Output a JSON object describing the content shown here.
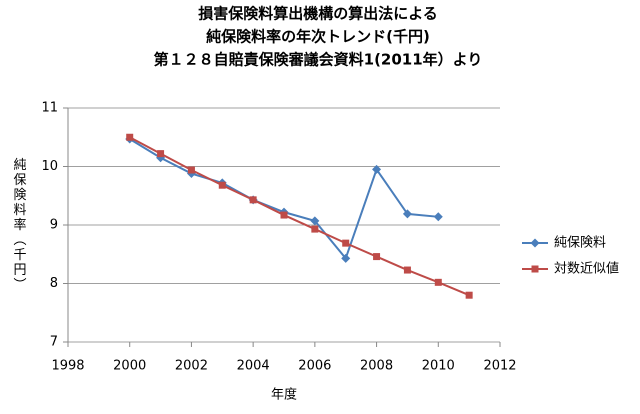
{
  "chart_data": {
    "type": "line",
    "title": [
      "損害保険料算出機構の算出法による",
      "純保険料率の年次トレンド(千円)",
      "第１２８自賠責保険審議会資料1(2011年）より"
    ],
    "x_label": "年度",
    "y_label": "純保険料率（千円）",
    "x": [
      2000,
      2001,
      2002,
      2003,
      2004,
      2005,
      2006,
      2007,
      2008,
      2009,
      2010,
      2011
    ],
    "series": [
      {
        "name": "純保険料",
        "color": "#4a7ebb",
        "marker": "diamond",
        "values": [
          10.47,
          10.15,
          9.88,
          9.72,
          9.43,
          9.22,
          9.07,
          8.43,
          9.95,
          9.19,
          9.14,
          null
        ]
      },
      {
        "name": "対数近似値",
        "color": "#be4b48",
        "marker": "square",
        "values": [
          10.5,
          10.22,
          9.94,
          9.68,
          9.43,
          9.17,
          8.93,
          8.69,
          8.46,
          8.23,
          8.02,
          7.8
        ]
      }
    ],
    "xlim": [
      1998,
      2012
    ],
    "xticks": [
      1998,
      2000,
      2002,
      2004,
      2006,
      2008,
      2010,
      2012
    ],
    "ylim": [
      7,
      11
    ],
    "yticks": [
      7,
      8,
      9,
      10,
      11
    ],
    "grid": true,
    "legend": "right"
  }
}
